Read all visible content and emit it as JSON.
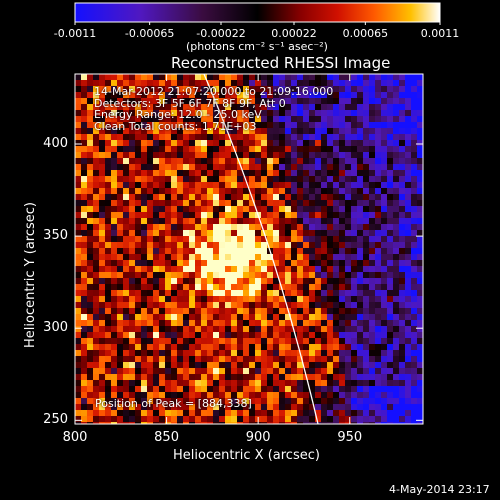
{
  "colorbar": {
    "ticks": [
      "-0.0011",
      "-0.00065",
      "-0.00022",
      "0.00022",
      "0.00065",
      "0.0011"
    ],
    "units": "(photons cm⁻² s⁻¹ asec⁻²)",
    "range": [
      -0.0011,
      0.0011
    ],
    "colors": [
      "#1410ff",
      "#6a1aa8",
      "#2a0820",
      "#000000",
      "#8a0000",
      "#d01000",
      "#ff5a00",
      "#ffb000",
      "#ffff80",
      "#ffffff"
    ]
  },
  "image": {
    "title": "Reconstructed RHESSI Image",
    "info_lines": [
      "14-Mar-2012 21:07:20.000 to 21:09:16.000",
      "Detectors: 3F 5F 6F 7F 8F 9F, Att 0",
      "Energy Range: 12.0 - 25.0 keV",
      "Clean     Total counts: 1.71E+03"
    ],
    "peak_text": "Position of Peak = [884,338]",
    "peak": [
      884,
      338
    ]
  },
  "axes": {
    "xlabel": "Heliocentric X (arcsec)",
    "ylabel": "Heliocentric Y (arcsec)",
    "xlim": [
      800,
      990
    ],
    "ylim": [
      248,
      438
    ],
    "xticks": [
      "800",
      "850",
      "900",
      "950"
    ],
    "yticks": [
      "400",
      "350",
      "300",
      "250"
    ]
  },
  "footer": {
    "date": "4-May-2014 23:17"
  }
}
